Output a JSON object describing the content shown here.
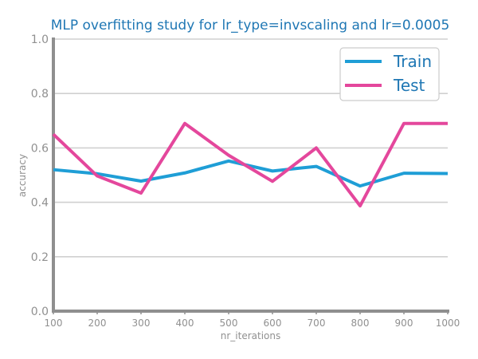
{
  "chart_data": {
    "type": "line",
    "title": "MLP overfitting study for lr_type=invscaling and lr=0.0005",
    "xlabel": "nr_iterations",
    "ylabel": "accuracy",
    "x": [
      100,
      200,
      300,
      400,
      500,
      600,
      700,
      800,
      900,
      1000
    ],
    "x_tick_labels": [
      "100",
      "200",
      "300",
      "400",
      "500",
      "600",
      "700",
      "800",
      "900",
      "1000"
    ],
    "y_ticks": [
      0.0,
      0.2,
      0.4,
      0.6,
      0.8,
      1.0
    ],
    "y_tick_labels": [
      "0.0",
      "0.2",
      "0.4",
      "0.6",
      "0.8",
      "1.0"
    ],
    "xlim": [
      100,
      1000
    ],
    "ylim": [
      0.0,
      1.0
    ],
    "grid": "horizontal",
    "legend_position": "top-right",
    "series": [
      {
        "name": "Train",
        "color": "#1f9ed6",
        "values": [
          0.52,
          0.505,
          0.478,
          0.508,
          0.552,
          0.515,
          0.532,
          0.46,
          0.507,
          0.506
        ]
      },
      {
        "name": "Test",
        "color": "#e4479c",
        "values": [
          0.65,
          0.497,
          0.434,
          0.69,
          0.573,
          0.477,
          0.6,
          0.387,
          0.69,
          0.69
        ]
      }
    ]
  }
}
